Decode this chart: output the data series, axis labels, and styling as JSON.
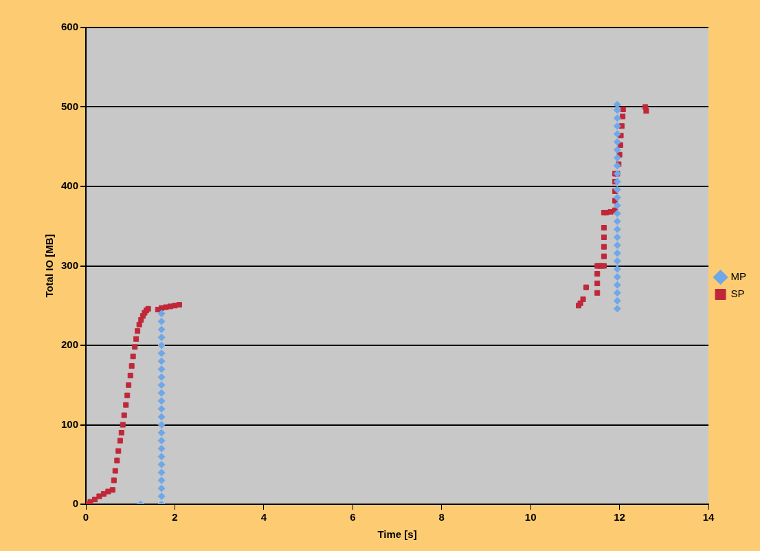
{
  "chart_data": {
    "type": "scatter",
    "xlabel": "Time [s]",
    "ylabel": "Total IO [MB]",
    "xlim": [
      0,
      14
    ],
    "xticks": [
      0,
      2,
      4,
      6,
      8,
      10,
      12,
      14
    ],
    "ylim": [
      0,
      600
    ],
    "yticks": [
      0,
      100,
      200,
      300,
      400,
      500,
      600
    ],
    "grid": "y",
    "legend": "right",
    "series": [
      {
        "name": "MP",
        "color": "#6fa8e8",
        "marker": "diamond",
        "x": [
          1.23,
          1.7,
          1.7,
          1.7,
          1.7,
          1.7,
          1.7,
          1.7,
          1.7,
          1.7,
          1.7,
          1.7,
          1.7,
          1.7,
          1.7,
          1.7,
          1.7,
          1.7,
          1.7,
          1.7,
          1.7,
          1.7,
          1.7,
          1.7,
          1.7,
          1.7,
          11.95,
          11.95,
          11.95,
          11.95,
          11.95,
          11.95,
          11.95,
          11.95,
          11.95,
          11.95,
          11.95,
          11.95,
          11.95,
          11.95,
          11.95,
          11.95,
          11.95,
          11.95,
          11.95,
          11.95,
          11.95,
          11.95,
          11.95,
          11.95,
          11.95,
          11.95,
          11.95
        ],
        "values": [
          0,
          0,
          10,
          20,
          30,
          40,
          50,
          60,
          70,
          80,
          90,
          100,
          110,
          120,
          130,
          140,
          150,
          160,
          170,
          180,
          190,
          200,
          210,
          220,
          230,
          240,
          246,
          256,
          266,
          276,
          286,
          296,
          306,
          316,
          326,
          336,
          346,
          356,
          366,
          376,
          386,
          396,
          406,
          416,
          426,
          436,
          446,
          456,
          466,
          476,
          486,
          496,
          503
        ]
      },
      {
        "name": "SP",
        "color": "#c0283a",
        "marker": "square",
        "x": [
          0,
          0.1,
          0.2,
          0.3,
          0.4,
          0.5,
          0.6,
          0.63,
          0.66,
          0.7,
          0.73,
          0.77,
          0.8,
          0.83,
          0.86,
          0.9,
          0.93,
          0.96,
          1.0,
          1.03,
          1.06,
          1.1,
          1.13,
          1.16,
          1.2,
          1.24,
          1.28,
          1.32,
          1.36,
          1.4,
          1.62,
          1.7,
          1.8,
          1.9,
          2.0,
          2.1,
          11.08,
          11.12,
          11.18,
          11.25,
          11.5,
          11.5,
          11.5,
          11.5,
          11.55,
          11.6,
          11.65,
          11.65,
          11.65,
          11.65,
          11.65,
          11.65,
          11.7,
          11.8,
          11.9,
          11.9,
          11.9,
          11.9,
          11.9,
          11.95,
          11.98,
          12.0,
          12.02,
          12.03,
          12.05,
          12.07,
          12.08,
          12.58,
          12.6
        ],
        "values": [
          0,
          3,
          6,
          10,
          13,
          16,
          18,
          30,
          42,
          55,
          67,
          80,
          90,
          100,
          112,
          125,
          137,
          150,
          162,
          174,
          186,
          198,
          208,
          218,
          226,
          232,
          237,
          241,
          244,
          246,
          245,
          247,
          248,
          249,
          250,
          251,
          250,
          253,
          258,
          273,
          266,
          278,
          290,
          300,
          300,
          300,
          300,
          312,
          324,
          336,
          348,
          367,
          367,
          368,
          370,
          382,
          394,
          406,
          416,
          416,
          428,
          440,
          452,
          464,
          476,
          488,
          497,
          500,
          495
        ]
      }
    ]
  }
}
